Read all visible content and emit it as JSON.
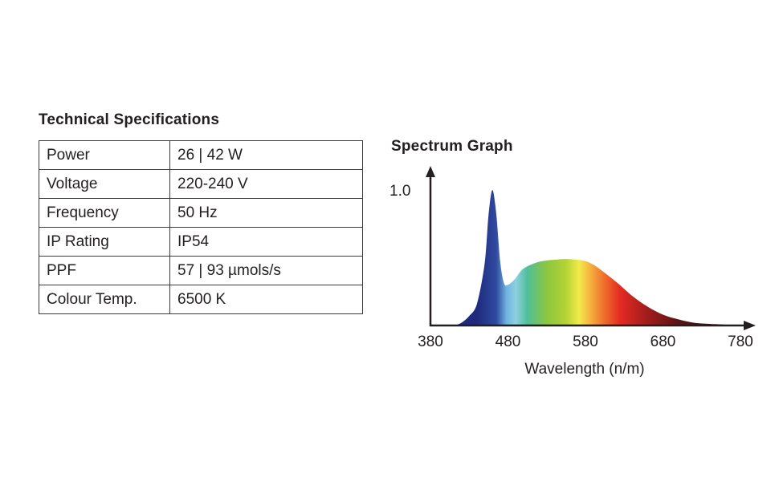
{
  "specs": {
    "title": "Technical Specifications",
    "rows": [
      {
        "label": "Power",
        "value": "26 | 42 W"
      },
      {
        "label": "Voltage",
        "value": "220-240 V"
      },
      {
        "label": "Frequency",
        "value": "50 Hz"
      },
      {
        "label": "IP Rating",
        "value": "IP54"
      },
      {
        "label": "PPF",
        "value": "57 | 93 µmols/s"
      },
      {
        "label": "Colour Temp.",
        "value": "6500 K"
      }
    ]
  },
  "chart_data": {
    "type": "area",
    "title": "Spectrum Graph",
    "xlabel": "Wavelength (n/m)",
    "ylabel": "",
    "xlim": [
      380,
      780
    ],
    "ylim": [
      0,
      1.0
    ],
    "x_ticks": [
      "380",
      "480",
      "580",
      "680",
      "780"
    ],
    "y_tick_label": "1.0",
    "x": [
      380,
      400,
      410,
      420,
      430,
      440,
      450,
      455,
      460,
      465,
      470,
      475,
      480,
      485,
      490,
      495,
      500,
      510,
      520,
      530,
      540,
      550,
      560,
      570,
      580,
      590,
      600,
      620,
      640,
      660,
      680,
      700,
      720,
      740,
      760,
      780
    ],
    "values": [
      0.0,
      0.0,
      0.0,
      0.02,
      0.07,
      0.16,
      0.46,
      0.82,
      1.0,
      0.82,
      0.47,
      0.31,
      0.3,
      0.32,
      0.35,
      0.39,
      0.42,
      0.45,
      0.47,
      0.48,
      0.485,
      0.49,
      0.49,
      0.485,
      0.475,
      0.45,
      0.41,
      0.32,
      0.22,
      0.14,
      0.08,
      0.045,
      0.02,
      0.012,
      0.006,
      0.0
    ],
    "spectrum_colors": [
      {
        "nm": 440,
        "color": "#1f2a7d"
      },
      {
        "nm": 465,
        "color": "#2f4aa0"
      },
      {
        "nm": 478,
        "color": "#6fb3e0"
      },
      {
        "nm": 490,
        "color": "#8fd0e0"
      },
      {
        "nm": 505,
        "color": "#4fbf9a"
      },
      {
        "nm": 530,
        "color": "#8cc63f"
      },
      {
        "nm": 555,
        "color": "#b5d334"
      },
      {
        "nm": 572,
        "color": "#f2ea4a"
      },
      {
        "nm": 585,
        "color": "#f6b640"
      },
      {
        "nm": 605,
        "color": "#ef6b2b"
      },
      {
        "nm": 625,
        "color": "#e32a22"
      },
      {
        "nm": 660,
        "color": "#a11d1d"
      },
      {
        "nm": 700,
        "color": "#5a1414"
      },
      {
        "nm": 780,
        "color": "#2a0c0c"
      }
    ]
  }
}
